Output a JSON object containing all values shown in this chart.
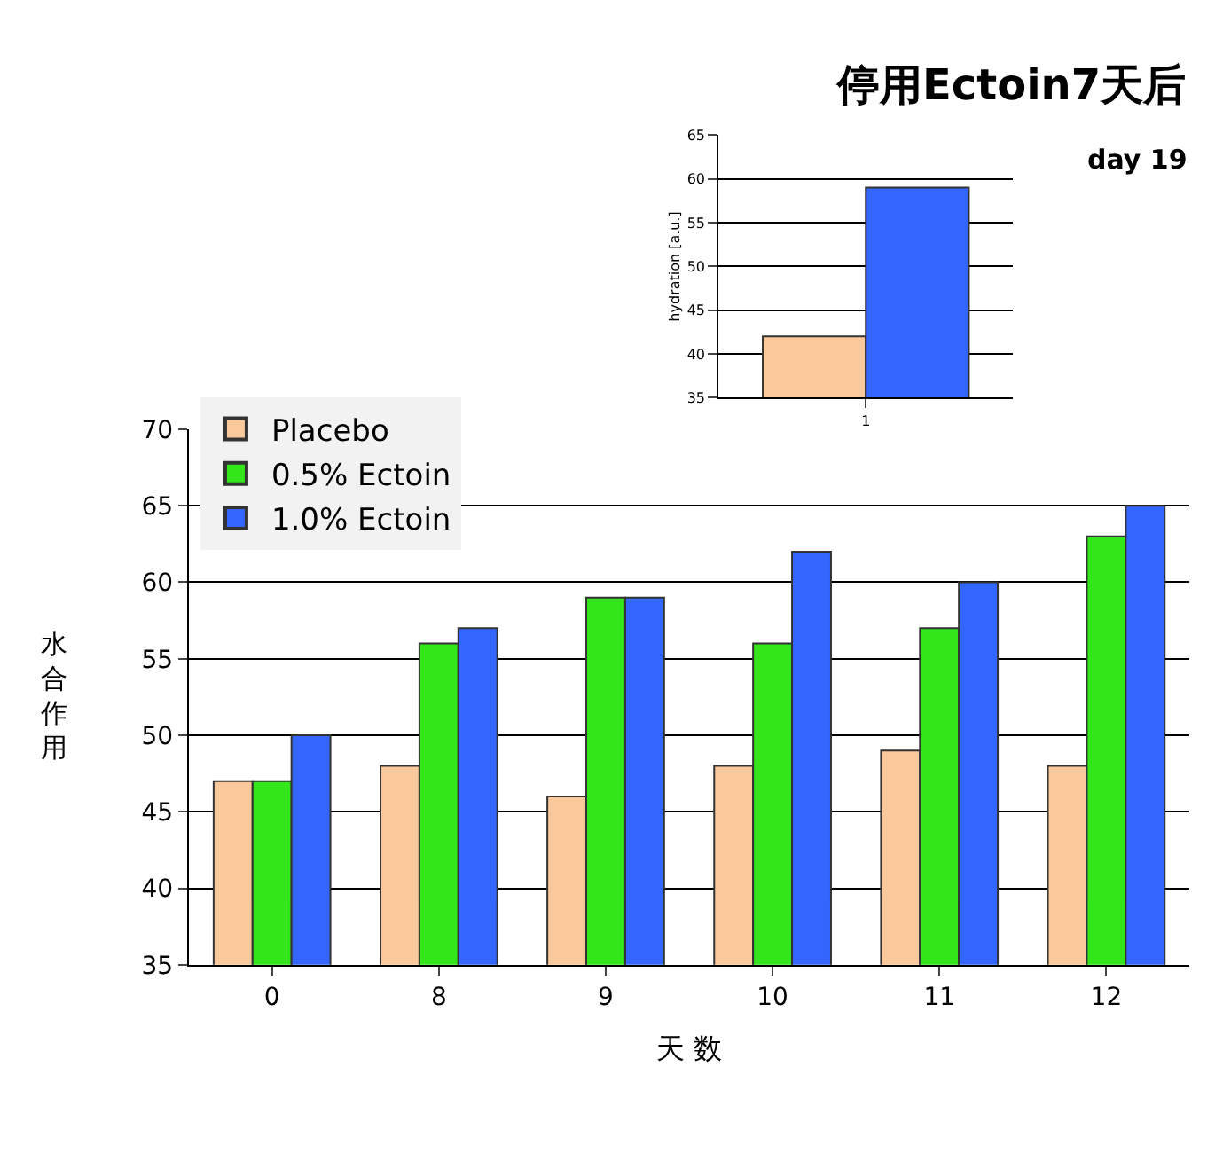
{
  "chart_data": [
    {
      "type": "bar",
      "xlabel": "天 数",
      "ylabel": "水合作用",
      "categories": [
        "0",
        "8",
        "9",
        "10",
        "11",
        "12"
      ],
      "series": [
        {
          "name": "Placebo",
          "color": "#f9c89b",
          "values": [
            47,
            48,
            46,
            48,
            49,
            48
          ]
        },
        {
          "name": "0.5% Ectoin",
          "color": "#33e619",
          "values": [
            47,
            56,
            59,
            56,
            57,
            63
          ]
        },
        {
          "name": "1.0% Ectoin",
          "color": "#3366ff",
          "values": [
            50,
            57,
            59,
            62,
            60,
            65
          ]
        }
      ],
      "ylim": [
        35,
        70
      ],
      "yticks": [
        35,
        40,
        45,
        50,
        55,
        60,
        65,
        70
      ],
      "grid": "y",
      "legend": "top left"
    },
    {
      "type": "bar",
      "title": "停用Ectoin7天后",
      "ylabel": "hydration [a.u.]",
      "annotations": [
        "day 19"
      ],
      "categories": [
        "1"
      ],
      "series": [
        {
          "color": "#f9c89b",
          "values": [
            42
          ]
        },
        {
          "color": "#3366ff",
          "values": [
            59
          ]
        }
      ],
      "ylim": [
        35,
        65
      ],
      "yticks": [
        35,
        40,
        45,
        50,
        55,
        60,
        65
      ],
      "grid": "y"
    }
  ]
}
